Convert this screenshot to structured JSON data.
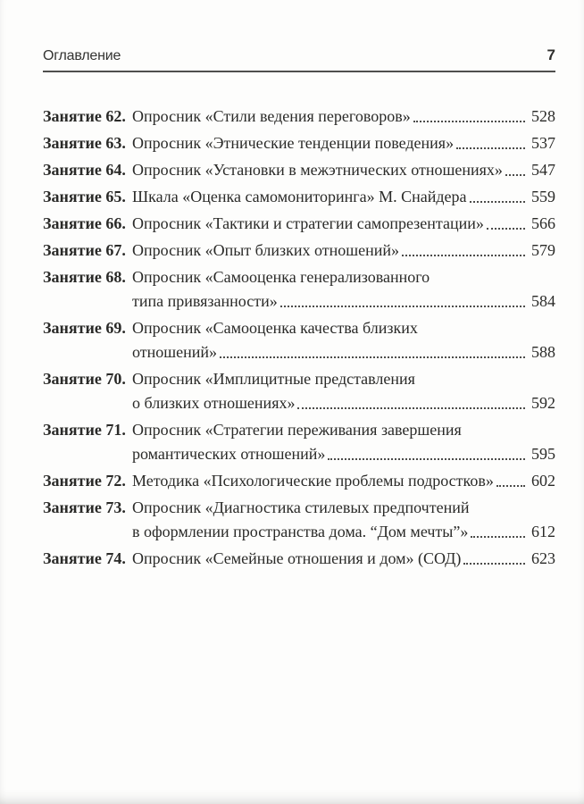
{
  "header": {
    "title": "Оглавление",
    "page_number": "7"
  },
  "toc": {
    "entries": [
      {
        "label": "Занятие 62.",
        "lines": [
          "Опросник «Стили ведения переговоров»"
        ],
        "page": "528"
      },
      {
        "label": "Занятие 63.",
        "lines": [
          "Опросник «Этнические тенденции поведения»"
        ],
        "page": "537"
      },
      {
        "label": "Занятие 64.",
        "lines": [
          "Опросник «Установки в межэтнических отношениях»"
        ],
        "page": "547"
      },
      {
        "label": "Занятие 65.",
        "lines": [
          "Шкала «Оценка самомониторинга» М. Снайдера"
        ],
        "page": "559"
      },
      {
        "label": "Занятие 66.",
        "lines": [
          "Опросник «Тактики и стратегии самопрезентации»"
        ],
        "page": "566"
      },
      {
        "label": "Занятие 67.",
        "lines": [
          "Опросник «Опыт близких отношений»"
        ],
        "page": "579"
      },
      {
        "label": "Занятие 68.",
        "lines": [
          "Опросник «Самооценка генерализованного",
          "типа привязанности»"
        ],
        "page": "584"
      },
      {
        "label": "Занятие 69.",
        "lines": [
          "Опросник «Самооценка качества близких",
          "отношений»"
        ],
        "page": "588"
      },
      {
        "label": "Занятие 70.",
        "lines": [
          "Опросник «Имплицитные представления",
          "о близких отношениях»"
        ],
        "page": "592"
      },
      {
        "label": "Занятие 71.",
        "lines": [
          "Опросник «Стратегии переживания завершения",
          "романтических отношений»"
        ],
        "page": "595"
      },
      {
        "label": "Занятие 72.",
        "lines": [
          "Методика «Психологические проблемы подростков»"
        ],
        "page": "602"
      },
      {
        "label": "Занятие 73.",
        "lines": [
          "Опросник «Диагностика стилевых предпочтений",
          "в оформлении пространства дома. “Дом мечты”»"
        ],
        "page": "612"
      },
      {
        "label": "Занятие 74.",
        "lines": [
          "Опросник «Семейные отношения и дом» (СОД)"
        ],
        "page": "623"
      }
    ]
  },
  "colors": {
    "text": "#2a2a28",
    "rule": "#4f4f4d",
    "leader": "#4c4c4a",
    "bg": "#fdfdfc"
  }
}
